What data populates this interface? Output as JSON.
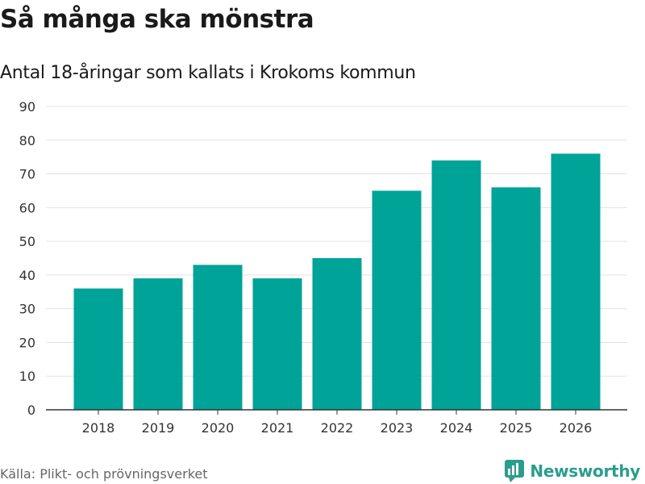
{
  "header": {
    "title": "Så många ska mönstra",
    "subtitle": "Antal 18-åringar som kallats i Krokoms kommun"
  },
  "footer": {
    "source": "Källa: Plikt- och prövningsverket",
    "brand": "Newsworthy",
    "brand_icon": "newsworthy-logo-icon"
  },
  "colors": {
    "bar": "#00A398",
    "grid": "#e3e3e3",
    "axis": "#333333",
    "brand": "#2a9d8f"
  },
  "chart_data": {
    "type": "bar",
    "title": "Så många ska mönstra",
    "subtitle": "Antal 18-åringar som kallats i Krokoms kommun",
    "xlabel": "",
    "ylabel": "",
    "categories": [
      "2018",
      "2019",
      "2020",
      "2021",
      "2022",
      "2023",
      "2024",
      "2025",
      "2026"
    ],
    "values": [
      36,
      39,
      43,
      39,
      45,
      65,
      74,
      66,
      76
    ],
    "ylim": [
      0,
      90
    ],
    "yticks": [
      0,
      10,
      20,
      30,
      40,
      50,
      60,
      70,
      80,
      90
    ],
    "grid": true,
    "legend": "none"
  }
}
